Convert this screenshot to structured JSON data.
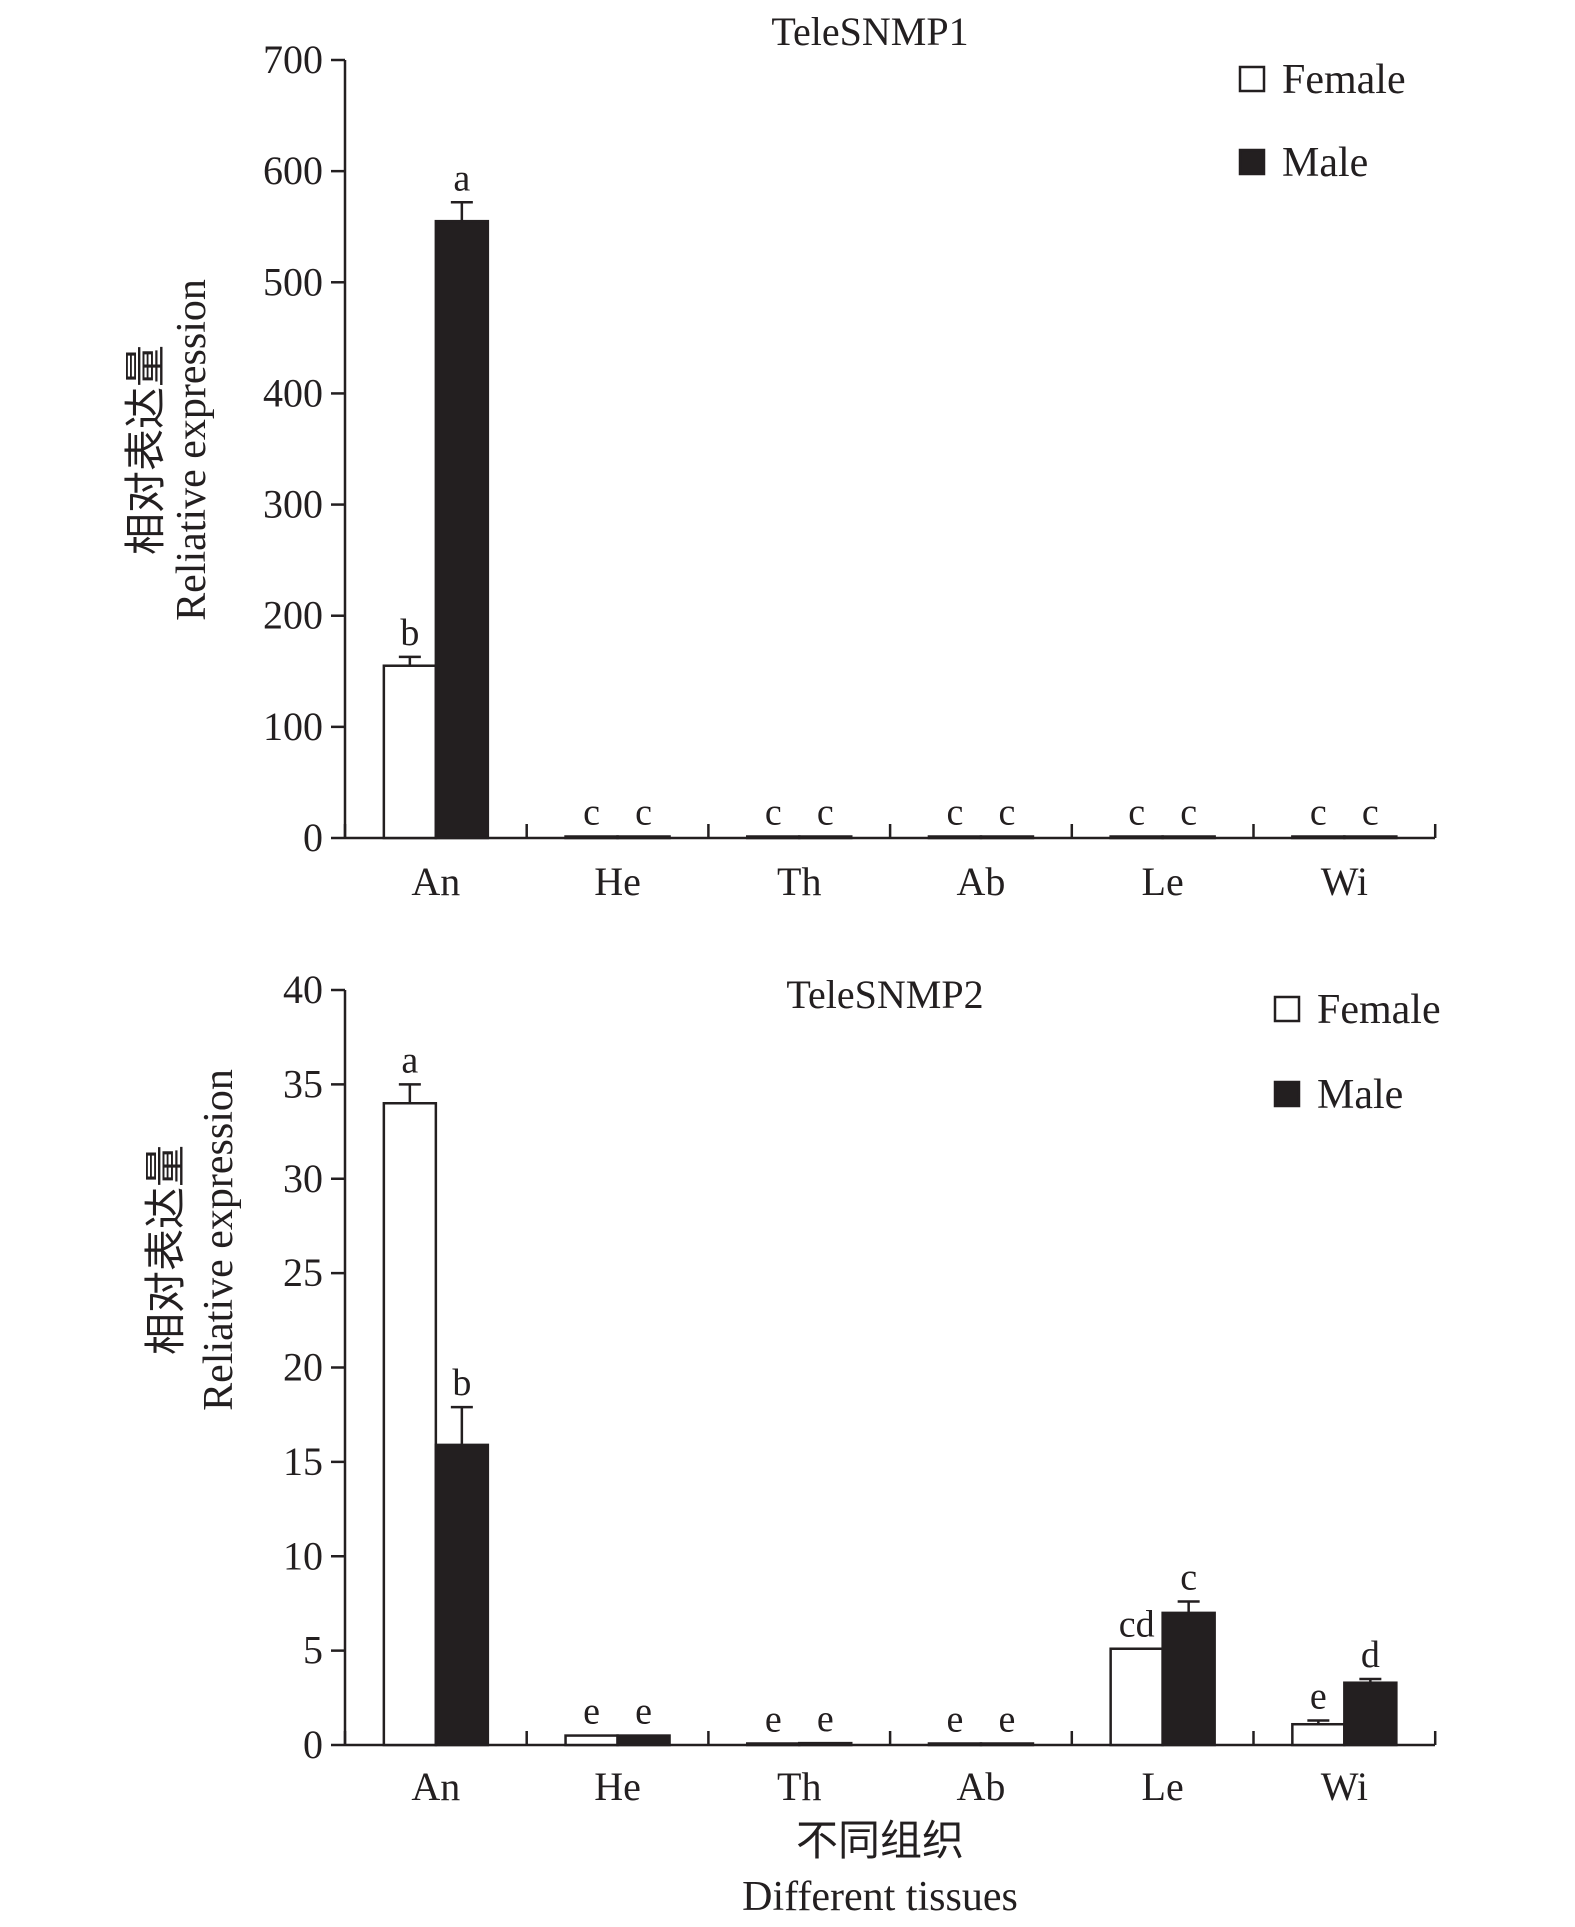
{
  "figure": {
    "xlabel_cn": "不同组织",
    "xlabel_en": "Different tissues"
  },
  "colors": {
    "female_fill": "#ffffff",
    "male_fill": "#231f20",
    "stroke": "#231f20"
  },
  "chart_data": [
    {
      "type": "bar",
      "title": "TeleSNMP1",
      "ylabel_cn": "相对表达量",
      "ylabel_en": "Reliative expression",
      "categories": [
        "An",
        "He",
        "Th",
        "Ab",
        "Le",
        "Wi"
      ],
      "ylim": [
        0,
        700
      ],
      "yticks": [
        0,
        100,
        200,
        300,
        400,
        500,
        600,
        700
      ],
      "legend_position": "top-right",
      "grid": false,
      "series": [
        {
          "name": "Female",
          "values": [
            155,
            1,
            1,
            1,
            1,
            1
          ],
          "errors": [
            8,
            0,
            0,
            0,
            0,
            0
          ],
          "labels": [
            "b",
            "c",
            "c",
            "c",
            "c",
            "c"
          ]
        },
        {
          "name": "Male",
          "values": [
            555,
            1,
            1,
            1,
            1,
            1
          ],
          "errors": [
            17,
            0,
            0,
            0,
            0,
            0
          ],
          "labels": [
            "a",
            "c",
            "c",
            "c",
            "c",
            "c"
          ]
        }
      ]
    },
    {
      "type": "bar",
      "title": "TeleSNMP2",
      "ylabel_cn": "相对表达量",
      "ylabel_en": "Reliative expression",
      "categories": [
        "An",
        "He",
        "Th",
        "Ab",
        "Le",
        "Wi"
      ],
      "ylim": [
        0,
        40
      ],
      "yticks": [
        0,
        5,
        10,
        15,
        20,
        25,
        30,
        35,
        40
      ],
      "legend_position": "top-right",
      "grid": false,
      "series": [
        {
          "name": "Female",
          "values": [
            34,
            0.5,
            0.05,
            0.05,
            5.1,
            1.1
          ],
          "errors": [
            1,
            0,
            0,
            0,
            0,
            0.2
          ],
          "labels": [
            "a",
            "e",
            "e",
            "e",
            "cd",
            "e"
          ]
        },
        {
          "name": "Male",
          "values": [
            15.9,
            0.5,
            0.1,
            0.05,
            7,
            3.3
          ],
          "errors": [
            2,
            0,
            0,
            0,
            0.6,
            0.2
          ],
          "labels": [
            "b",
            "e",
            "e",
            "e",
            "c",
            "d"
          ]
        }
      ]
    }
  ]
}
